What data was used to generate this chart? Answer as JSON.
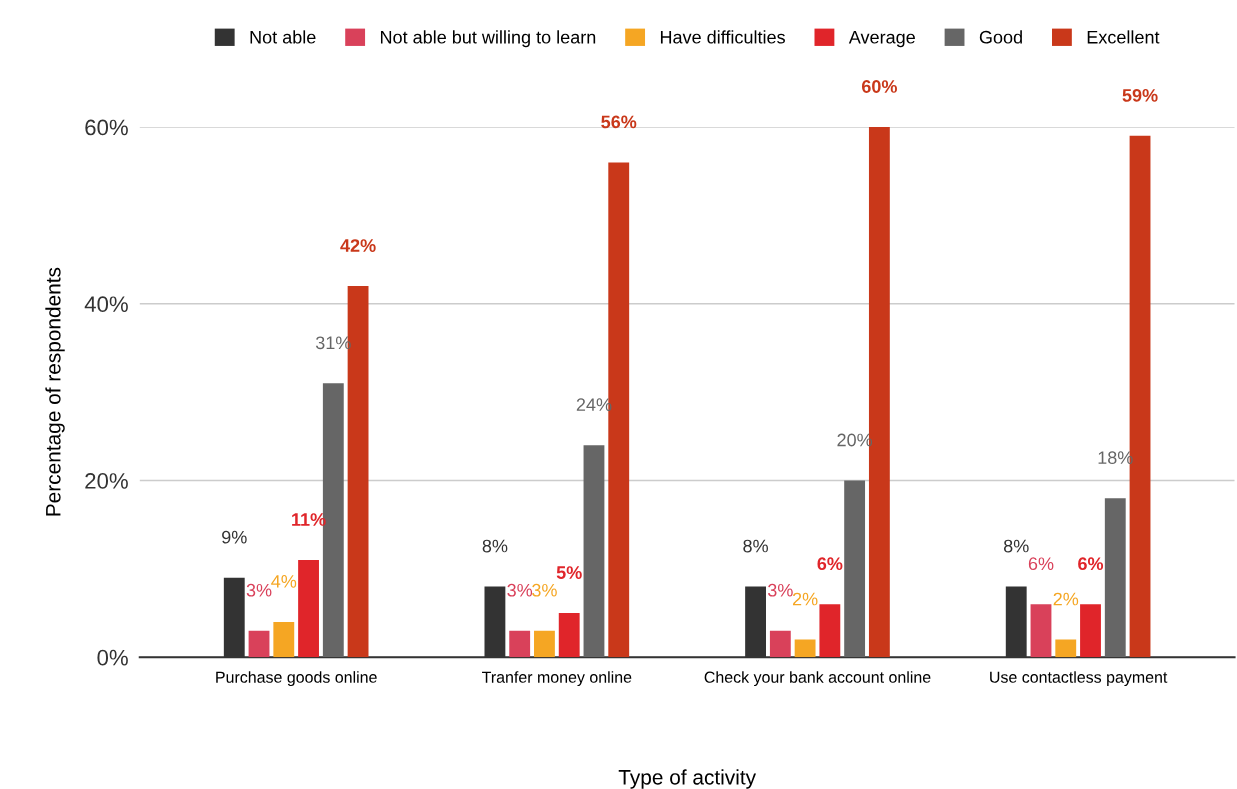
{
  "chart_data": {
    "type": "bar",
    "categories": [
      "Purchase goods online",
      "Tranfer money online",
      "Check your bank account online",
      "Use contactless payment"
    ],
    "series": [
      {
        "name": "Not able",
        "color": "#333333",
        "values": [
          9,
          8,
          8,
          8
        ],
        "value_labels": [
          "9%",
          "8%",
          "8%",
          "8%"
        ]
      },
      {
        "name": "Not able but willing to learn",
        "color": "#d9415a",
        "values": [
          3,
          3,
          3,
          6
        ],
        "value_labels": [
          "3%",
          "3%",
          "3%",
          "6%"
        ]
      },
      {
        "name": "Have difficulties",
        "color": "#f5a623",
        "values": [
          4,
          3,
          2,
          2
        ],
        "value_labels": [
          "4%",
          "3%",
          "2%",
          "2%"
        ]
      },
      {
        "name": "Average",
        "color": "#e0252a",
        "values": [
          11,
          5,
          6,
          6
        ],
        "value_labels": [
          "11%",
          "5%",
          "6%",
          "6%"
        ]
      },
      {
        "name": "Good",
        "color": "#666666",
        "values": [
          31,
          24,
          20,
          18
        ],
        "value_labels": [
          "31%",
          "24%",
          "20%",
          "18%"
        ]
      },
      {
        "name": "Excellent",
        "color": "#c9381a",
        "values": [
          42,
          56,
          60,
          59
        ],
        "value_labels": [
          "42%",
          "56%",
          "60%",
          "59%"
        ]
      }
    ],
    "xlabel": "Type of activity",
    "ylabel": "Percentage of respondents",
    "ylim": [
      0,
      60
    ],
    "yticks": [
      {
        "value": 0,
        "label": "0%"
      },
      {
        "value": 20,
        "label": "20%"
      },
      {
        "value": 40,
        "label": "40%"
      },
      {
        "value": 60,
        "label": "60%"
      }
    ],
    "grid": "y",
    "legend": "top"
  }
}
